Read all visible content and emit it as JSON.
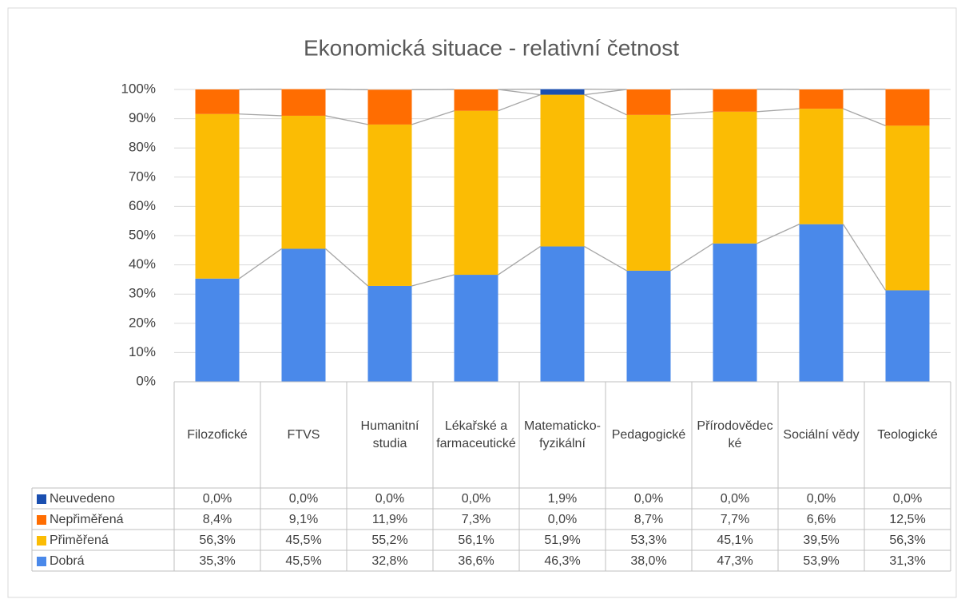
{
  "chart_data": {
    "type": "stacked_bar",
    "title": "Ekonomická situace - relativní četnost",
    "categories": [
      "Filozofické",
      "FTVS",
      "Humanitní studia",
      "Lékařské a farmaceutické",
      "Matematicko-fyzikální",
      "Pedagogické",
      "Přírodovědecké",
      "Sociální vědy",
      "Teologické"
    ],
    "series": [
      {
        "name": "Dobrá",
        "color": "#4a89ea",
        "values": [
          35.3,
          45.5,
          32.8,
          36.6,
          46.3,
          38.0,
          47.3,
          53.9,
          31.3
        ],
        "value_labels": [
          "35,3%",
          "45,5%",
          "32,8%",
          "36,6%",
          "46,3%",
          "38,0%",
          "47,3%",
          "53,9%",
          "31,3%"
        ]
      },
      {
        "name": "Přiměřená",
        "color": "#fbbc04",
        "values": [
          56.3,
          45.5,
          55.2,
          56.1,
          51.9,
          53.3,
          45.1,
          39.5,
          56.3
        ],
        "value_labels": [
          "56,3%",
          "45,5%",
          "55,2%",
          "56,1%",
          "51,9%",
          "53,3%",
          "45,1%",
          "39,5%",
          "56,3%"
        ]
      },
      {
        "name": "Nepřiměřená",
        "color": "#ff6d01",
        "values": [
          8.4,
          9.1,
          11.9,
          7.3,
          0.0,
          8.7,
          7.7,
          6.6,
          12.5
        ],
        "value_labels": [
          "8,4%",
          "9,1%",
          "11,9%",
          "7,3%",
          "0,0%",
          "8,7%",
          "7,7%",
          "6,6%",
          "12,5%"
        ]
      },
      {
        "name": "Neuvedeno",
        "color": "#1a4fb0",
        "values": [
          0.0,
          0.0,
          0.0,
          0.0,
          1.9,
          0.0,
          0.0,
          0.0,
          0.0
        ],
        "value_labels": [
          "0,0%",
          "0,0%",
          "0,0%",
          "0,0%",
          "1,9%",
          "0,0%",
          "0,0%",
          "0,0%",
          "0,0%"
        ]
      }
    ],
    "ylim": [
      0,
      100
    ],
    "yticks": [
      {
        "value": 0,
        "label": "0%"
      },
      {
        "value": 10,
        "label": "10%"
      },
      {
        "value": 20,
        "label": "20%"
      },
      {
        "value": 30,
        "label": "30%"
      },
      {
        "value": 40,
        "label": "40%"
      },
      {
        "value": 50,
        "label": "50%"
      },
      {
        "value": 60,
        "label": "60%"
      },
      {
        "value": 70,
        "label": "70%"
      },
      {
        "value": 80,
        "label": "80%"
      },
      {
        "value": 90,
        "label": "90%"
      },
      {
        "value": 100,
        "label": "100%"
      }
    ],
    "grid": true
  }
}
